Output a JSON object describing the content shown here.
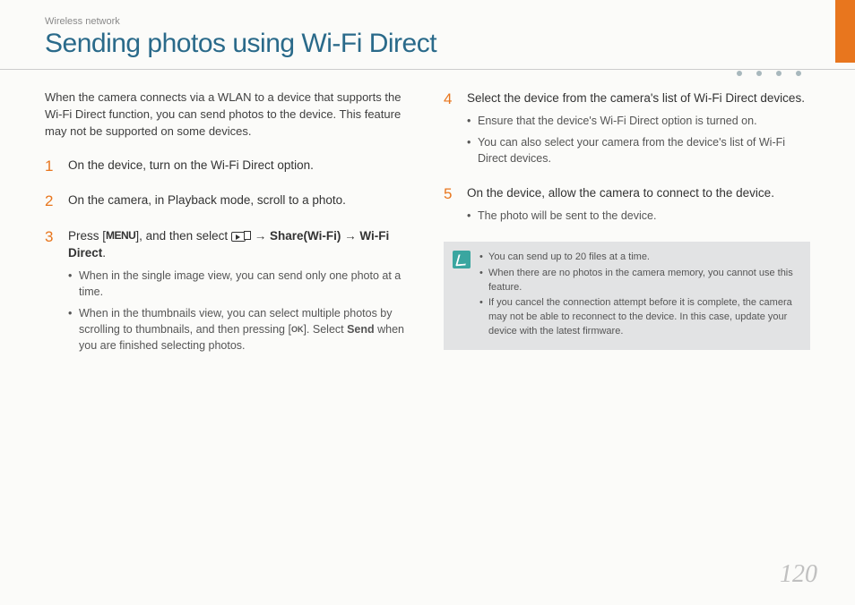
{
  "breadcrumb": "Wireless network",
  "title": "Sending photos using Wi-Fi Direct",
  "intro": "When the camera connects via a WLAN to a device that supports the Wi-Fi Direct function, you can send photos to the device. This feature may not be supported on some devices.",
  "steps": {
    "s1": {
      "num": "1",
      "title": "On the device, turn on the Wi-Fi Direct option."
    },
    "s2": {
      "num": "2",
      "title": "On the camera, in Playback mode, scroll to a photo."
    },
    "s3": {
      "num": "3",
      "prefix": "Press [",
      "menu_label": "MENU",
      "mid1": "], and then select ",
      "arrow1": " → ",
      "share_label": "Share(Wi-Fi)",
      "arrow2": " → ",
      "wifi_label": "Wi-Fi Direct",
      "suffix": ".",
      "b1": "When in the single image view, you can send only one photo at a time.",
      "b2_a": "When in the thumbnails view, you can select multiple photos by scrolling to thumbnails, and then pressing [",
      "ok_label": "OK",
      "b2_b": "]. Select ",
      "send_label": "Send",
      "b2_c": " when you are finished selecting photos."
    },
    "s4": {
      "num": "4",
      "title": "Select the device from the camera's list of Wi-Fi Direct devices.",
      "b1": "Ensure that the device's Wi-Fi Direct option is turned on.",
      "b2": "You can also select your camera from the device's list of Wi-Fi Direct devices."
    },
    "s5": {
      "num": "5",
      "title": "On the device, allow the camera to connect to the device.",
      "b1": "The photo will be sent to the device."
    }
  },
  "notes": {
    "n1": "You can send up to 20 files at a time.",
    "n2": "When there are no photos in the camera memory, you cannot use this feature.",
    "n3": "If you cancel the connection attempt before it is complete, the camera may not be able to reconnect to the device. In this case, update your device with the latest firmware."
  },
  "page_number": "120",
  "colors": {
    "accent_orange": "#e8761e",
    "title_teal": "#2a6a8a",
    "note_bg": "#e2e3e4",
    "note_icon": "#3aa6a0",
    "page_bg": "#fbfbf9"
  }
}
